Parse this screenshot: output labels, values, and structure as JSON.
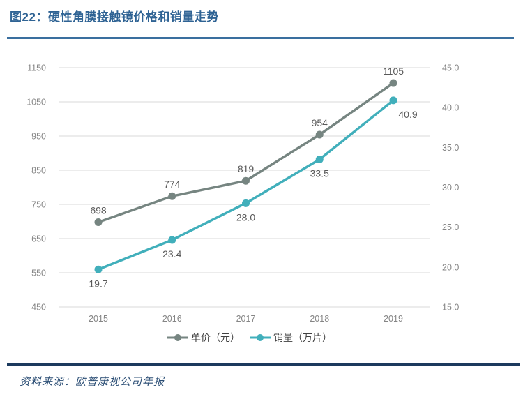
{
  "header": {
    "title": "图22：硬性角膜接触镜价格和销量走势"
  },
  "footer": {
    "source": "资料来源：欧普康视公司年报"
  },
  "colors": {
    "title_blue": "#2f6394",
    "top_rule": "#3a6f9f",
    "bottom_rule": "#1c3a5e",
    "grid": "#d9d9d9",
    "tick_label": "#858585",
    "data_label": "#595959",
    "legend_text": "#404040",
    "price_series": "#768581",
    "volume_series": "#41afbb"
  },
  "chart_data": {
    "type": "line",
    "title": "硬性角膜接触镜价格和销量走势",
    "categories": [
      "2015",
      "2016",
      "2017",
      "2018",
      "2019"
    ],
    "series": [
      {
        "key": "price",
        "name": "单价（元）",
        "axis": "left",
        "color_key": "price_series",
        "values": [
          698,
          774,
          819,
          954,
          1105
        ],
        "labels": [
          "698",
          "774",
          "819",
          "954",
          "1105"
        ],
        "label_position": "above"
      },
      {
        "key": "volume",
        "name": "销量（万片）",
        "axis": "right",
        "color_key": "volume_series",
        "values": [
          19.7,
          23.4,
          28.0,
          33.5,
          40.9
        ],
        "labels": [
          "19.7",
          "23.4",
          "28.0",
          "33.5",
          "40.9"
        ],
        "label_position": "below"
      }
    ],
    "left_axis": {
      "min": 450,
      "max": 1150,
      "step": 100,
      "ticks": [
        "1150",
        "1050",
        "950",
        "850",
        "750",
        "650",
        "550",
        "450"
      ]
    },
    "right_axis": {
      "min": 15,
      "max": 45,
      "step": 5,
      "ticks": [
        "45.0",
        "40.0",
        "35.0",
        "30.0",
        "25.0",
        "20.0",
        "15.0"
      ]
    },
    "grid": "horizontal",
    "legend_position": "bottom"
  }
}
